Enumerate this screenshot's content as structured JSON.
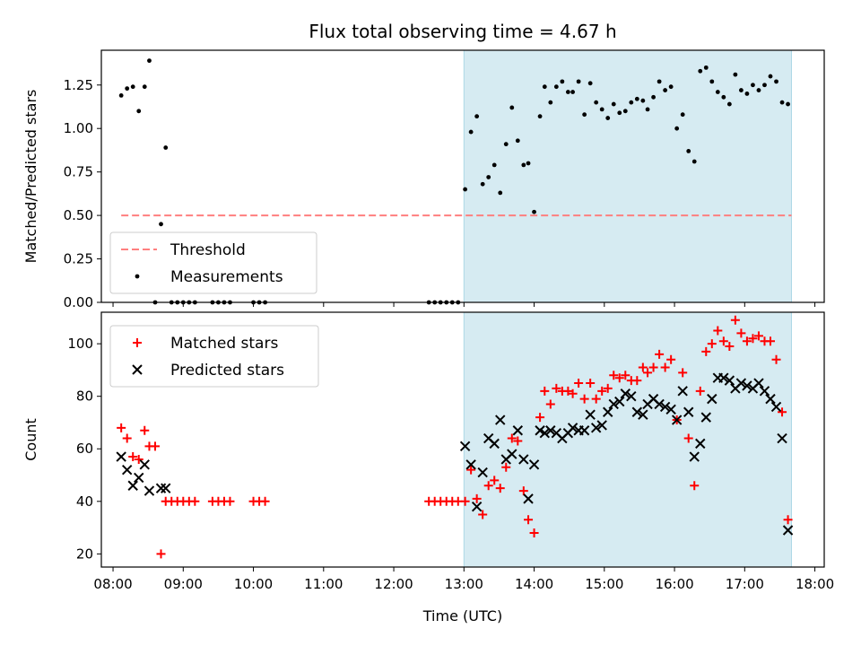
{
  "chart_data": {
    "title": "Flux total observing time = 4.67 h",
    "xlabel": "Time (UTC)",
    "x_ticks": [
      "08:00",
      "09:00",
      "10:00",
      "11:00",
      "12:00",
      "13:00",
      "14:00",
      "15:00",
      "16:00",
      "17:00",
      "18:00"
    ],
    "xlim": [
      "07:50",
      "18:08"
    ],
    "highlight_span": {
      "start": "13:00",
      "end": "17:40",
      "color": "#add8e6"
    },
    "grid": false,
    "panels": [
      {
        "type": "scatter",
        "ylabel": "Matched/Predicted stars",
        "ylim": [
          0,
          1.45
        ],
        "y_ticks": [
          "0.00",
          "0.25",
          "0.50",
          "0.75",
          "1.00",
          "1.25"
        ],
        "legend_position": "lower-left",
        "threshold": {
          "name": "Threshold",
          "value": 0.5,
          "from": "08:07",
          "to": "17:40",
          "color": "#ff7f7f"
        },
        "series": [
          {
            "name": "Measurements",
            "marker": "dot",
            "color": "#000000",
            "points": [
              [
                "08:07",
                1.19
              ],
              [
                "08:12",
                1.23
              ],
              [
                "08:17",
                1.24
              ],
              [
                "08:22",
                1.1
              ],
              [
                "08:27",
                1.24
              ],
              [
                "08:31",
                1.39
              ],
              [
                "08:36",
                0.0
              ],
              [
                "08:41",
                0.45
              ],
              [
                "08:45",
                0.89
              ],
              [
                "08:50",
                0.0
              ],
              [
                "08:55",
                0.0
              ],
              [
                "09:00",
                0.0
              ],
              [
                "09:05",
                0.0
              ],
              [
                "09:10",
                0.0
              ],
              [
                "09:25",
                0.0
              ],
              [
                "09:30",
                0.0
              ],
              [
                "09:35",
                0.0
              ],
              [
                "09:40",
                0.0
              ],
              [
                "10:00",
                0.0
              ],
              [
                "10:05",
                0.0
              ],
              [
                "10:10",
                0.0
              ],
              [
                "12:30",
                0.0
              ],
              [
                "12:35",
                0.0
              ],
              [
                "12:40",
                0.0
              ],
              [
                "12:45",
                0.0
              ],
              [
                "12:50",
                0.0
              ],
              [
                "12:55",
                0.0
              ],
              [
                "13:01",
                0.65
              ],
              [
                "13:06",
                0.98
              ],
              [
                "13:11",
                1.07
              ],
              [
                "13:16",
                0.68
              ],
              [
                "13:21",
                0.72
              ],
              [
                "13:26",
                0.79
              ],
              [
                "13:31",
                0.63
              ],
              [
                "13:36",
                0.91
              ],
              [
                "13:41",
                1.12
              ],
              [
                "13:46",
                0.93
              ],
              [
                "13:51",
                0.79
              ],
              [
                "13:55",
                0.8
              ],
              [
                "14:00",
                0.52
              ],
              [
                "14:05",
                1.07
              ],
              [
                "14:09",
                1.24
              ],
              [
                "14:14",
                1.15
              ],
              [
                "14:19",
                1.24
              ],
              [
                "14:24",
                1.27
              ],
              [
                "14:29",
                1.21
              ],
              [
                "14:33",
                1.21
              ],
              [
                "14:38",
                1.27
              ],
              [
                "14:43",
                1.08
              ],
              [
                "14:48",
                1.26
              ],
              [
                "14:53",
                1.15
              ],
              [
                "14:58",
                1.11
              ],
              [
                "15:03",
                1.06
              ],
              [
                "15:08",
                1.14
              ],
              [
                "15:13",
                1.09
              ],
              [
                "15:18",
                1.1
              ],
              [
                "15:23",
                1.15
              ],
              [
                "15:28",
                1.17
              ],
              [
                "15:33",
                1.16
              ],
              [
                "15:37",
                1.11
              ],
              [
                "15:42",
                1.18
              ],
              [
                "15:47",
                1.27
              ],
              [
                "15:52",
                1.22
              ],
              [
                "15:57",
                1.24
              ],
              [
                "16:02",
                1.0
              ],
              [
                "16:07",
                1.08
              ],
              [
                "16:12",
                0.87
              ],
              [
                "16:17",
                0.81
              ],
              [
                "16:22",
                1.33
              ],
              [
                "16:27",
                1.35
              ],
              [
                "16:32",
                1.27
              ],
              [
                "16:37",
                1.21
              ],
              [
                "16:42",
                1.18
              ],
              [
                "16:47",
                1.14
              ],
              [
                "16:52",
                1.31
              ],
              [
                "16:57",
                1.22
              ],
              [
                "17:02",
                1.2
              ],
              [
                "17:07",
                1.25
              ],
              [
                "17:12",
                1.22
              ],
              [
                "17:17",
                1.25
              ],
              [
                "17:22",
                1.3
              ],
              [
                "17:27",
                1.27
              ],
              [
                "17:32",
                1.15
              ],
              [
                "17:37",
                1.14
              ]
            ]
          }
        ]
      },
      {
        "type": "scatter",
        "ylabel": "Count",
        "ylim": [
          15,
          112
        ],
        "y_ticks": [
          "20",
          "40",
          "60",
          "80",
          "100"
        ],
        "legend_position": "upper-left",
        "series": [
          {
            "name": "Matched stars",
            "marker": "plus",
            "color": "#ff0000",
            "points": [
              [
                "08:07",
                68
              ],
              [
                "08:12",
                64
              ],
              [
                "08:17",
                57
              ],
              [
                "08:22",
                56
              ],
              [
                "08:27",
                67
              ],
              [
                "08:31",
                61
              ],
              [
                "08:36",
                61
              ],
              [
                "08:41",
                20
              ],
              [
                "08:45",
                40
              ],
              [
                "08:50",
                40
              ],
              [
                "08:55",
                40
              ],
              [
                "09:00",
                40
              ],
              [
                "09:05",
                40
              ],
              [
                "09:10",
                40
              ],
              [
                "09:25",
                40
              ],
              [
                "09:30",
                40
              ],
              [
                "09:35",
                40
              ],
              [
                "09:40",
                40
              ],
              [
                "10:00",
                40
              ],
              [
                "10:05",
                40
              ],
              [
                "10:10",
                40
              ],
              [
                "12:30",
                40
              ],
              [
                "12:35",
                40
              ],
              [
                "12:40",
                40
              ],
              [
                "12:45",
                40
              ],
              [
                "12:50",
                40
              ],
              [
                "12:55",
                40
              ],
              [
                "13:01",
                40
              ],
              [
                "13:06",
                52
              ],
              [
                "13:11",
                41
              ],
              [
                "13:16",
                35
              ],
              [
                "13:21",
                46
              ],
              [
                "13:26",
                48
              ],
              [
                "13:31",
                45
              ],
              [
                "13:36",
                53
              ],
              [
                "13:41",
                64
              ],
              [
                "13:46",
                63
              ],
              [
                "13:51",
                44
              ],
              [
                "13:55",
                33
              ],
              [
                "14:00",
                28
              ],
              [
                "14:05",
                72
              ],
              [
                "14:09",
                82
              ],
              [
                "14:14",
                77
              ],
              [
                "14:19",
                83
              ],
              [
                "14:24",
                82
              ],
              [
                "14:29",
                82
              ],
              [
                "14:33",
                81
              ],
              [
                "14:38",
                85
              ],
              [
                "14:43",
                79
              ],
              [
                "14:48",
                85
              ],
              [
                "14:53",
                79
              ],
              [
                "14:58",
                82
              ],
              [
                "15:03",
                83
              ],
              [
                "15:08",
                88
              ],
              [
                "15:13",
                87
              ],
              [
                "15:18",
                88
              ],
              [
                "15:23",
                86
              ],
              [
                "15:28",
                86
              ],
              [
                "15:33",
                91
              ],
              [
                "15:37",
                89
              ],
              [
                "15:42",
                91
              ],
              [
                "15:47",
                96
              ],
              [
                "15:52",
                91
              ],
              [
                "15:57",
                94
              ],
              [
                "16:02",
                71
              ],
              [
                "16:07",
                89
              ],
              [
                "16:12",
                64
              ],
              [
                "16:17",
                46
              ],
              [
                "16:22",
                82
              ],
              [
                "16:27",
                97
              ],
              [
                "16:32",
                100
              ],
              [
                "16:37",
                105
              ],
              [
                "16:42",
                101
              ],
              [
                "16:47",
                99
              ],
              [
                "16:52",
                109
              ],
              [
                "16:57",
                104
              ],
              [
                "17:02",
                101
              ],
              [
                "17:07",
                102
              ],
              [
                "17:12",
                103
              ],
              [
                "17:17",
                101
              ],
              [
                "17:22",
                101
              ],
              [
                "17:27",
                94
              ],
              [
                "17:32",
                74
              ],
              [
                "17:37",
                33
              ]
            ]
          },
          {
            "name": "Predicted stars",
            "marker": "x",
            "color": "#000000",
            "points": [
              [
                "08:07",
                57
              ],
              [
                "08:12",
                52
              ],
              [
                "08:17",
                46
              ],
              [
                "08:22",
                49
              ],
              [
                "08:27",
                54
              ],
              [
                "08:31",
                44
              ],
              [
                "08:41",
                45
              ],
              [
                "08:45",
                45
              ],
              [
                "13:01",
                61
              ],
              [
                "13:06",
                54
              ],
              [
                "13:11",
                38
              ],
              [
                "13:16",
                51
              ],
              [
                "13:21",
                64
              ],
              [
                "13:26",
                62
              ],
              [
                "13:31",
                71
              ],
              [
                "13:36",
                56
              ],
              [
                "13:41",
                58
              ],
              [
                "13:46",
                67
              ],
              [
                "13:51",
                56
              ],
              [
                "13:55",
                41
              ],
              [
                "14:00",
                54
              ],
              [
                "14:05",
                67
              ],
              [
                "14:09",
                66
              ],
              [
                "14:14",
                67
              ],
              [
                "14:19",
                66
              ],
              [
                "14:24",
                64
              ],
              [
                "14:29",
                66
              ],
              [
                "14:33",
                68
              ],
              [
                "14:38",
                67
              ],
              [
                "14:43",
                67
              ],
              [
                "14:48",
                73
              ],
              [
                "14:53",
                68
              ],
              [
                "14:58",
                69
              ],
              [
                "15:03",
                74
              ],
              [
                "15:08",
                77
              ],
              [
                "15:13",
                78
              ],
              [
                "15:18",
                81
              ],
              [
                "15:23",
                80
              ],
              [
                "15:28",
                74
              ],
              [
                "15:33",
                73
              ],
              [
                "15:37",
                77
              ],
              [
                "15:42",
                79
              ],
              [
                "15:47",
                77
              ],
              [
                "15:52",
                76
              ],
              [
                "15:57",
                75
              ],
              [
                "16:02",
                71
              ],
              [
                "16:07",
                82
              ],
              [
                "16:12",
                74
              ],
              [
                "16:17",
                57
              ],
              [
                "16:22",
                62
              ],
              [
                "16:27",
                72
              ],
              [
                "16:32",
                79
              ],
              [
                "16:37",
                87
              ],
              [
                "16:42",
                87
              ],
              [
                "16:47",
                86
              ],
              [
                "16:52",
                83
              ],
              [
                "16:57",
                85
              ],
              [
                "17:02",
                84
              ],
              [
                "17:07",
                83
              ],
              [
                "17:12",
                85
              ],
              [
                "17:17",
                82
              ],
              [
                "17:22",
                79
              ],
              [
                "17:27",
                76
              ],
              [
                "17:32",
                64
              ],
              [
                "17:37",
                29
              ]
            ]
          }
        ]
      }
    ]
  }
}
